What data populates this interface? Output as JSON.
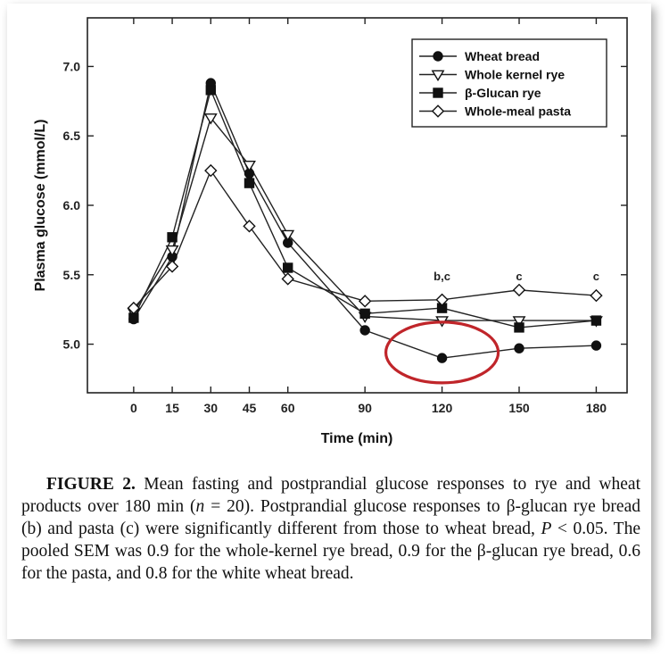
{
  "chart_data": {
    "type": "line",
    "xlabel": "Time (min)",
    "ylabel": "Plasma glucose (mmol/L)",
    "x": [
      0,
      15,
      30,
      45,
      60,
      90,
      120,
      150,
      180
    ],
    "xticks": [
      "0",
      "15",
      "30",
      "45",
      "60",
      "90",
      "120",
      "150",
      "180"
    ],
    "yticks": [
      "5.0",
      "5.5",
      "6.0",
      "6.5",
      "7.0"
    ],
    "xlim": [
      -18,
      192
    ],
    "ylim": [
      4.65,
      7.35
    ],
    "legend_position": "top-right",
    "series": [
      {
        "name": "Wheat bread",
        "marker": "filled-circle",
        "values": [
          5.18,
          5.63,
          6.88,
          6.23,
          5.73,
          5.1,
          4.9,
          4.97,
          4.99
        ]
      },
      {
        "name": "Whole kernel rye",
        "marker": "open-triangle-down",
        "values": [
          5.23,
          5.68,
          6.63,
          6.29,
          5.79,
          5.2,
          5.17,
          5.17,
          5.17
        ]
      },
      {
        "name": "β-Glucan rye",
        "marker": "filled-square",
        "values": [
          5.19,
          5.77,
          6.83,
          6.16,
          5.55,
          5.22,
          5.26,
          5.12,
          5.17
        ]
      },
      {
        "name": "Whole-meal pasta",
        "marker": "open-diamond",
        "values": [
          5.26,
          5.56,
          6.25,
          5.85,
          5.47,
          5.31,
          5.32,
          5.39,
          5.35
        ]
      }
    ],
    "annotations": [
      {
        "text": "b,c",
        "x": 120
      },
      {
        "text": "c",
        "x": 150
      },
      {
        "text": "c",
        "x": 180
      }
    ],
    "highlight": {
      "type": "ellipse",
      "color": "#c0252a",
      "x_center": 120,
      "y_center": 4.94
    }
  },
  "caption": {
    "label": "FIGURE 2.",
    "text_before_n": " Mean fasting and postprandial glucose responses to rye and wheat products over 180 min (",
    "n_symbol": "n",
    "text_after_n": " = 20). Postprandial glucose responses to β-glucan rye bread (b) and pasta (c) were significantly different from those to wheat bread, ",
    "p_symbol": "P",
    "text_end": " < 0.05. The pooled SEM was 0.9 for the whole-kernel rye bread, 0.9 for the β-glucan rye bread, 0.6 for the pasta, and 0.8 for the white wheat bread."
  }
}
